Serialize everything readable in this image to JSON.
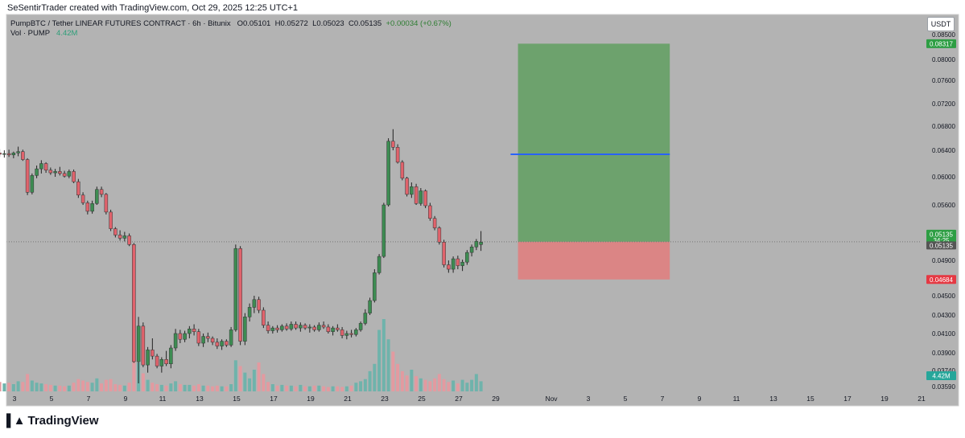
{
  "header": {
    "credit": "SeSentirTrader created with TradingView.com, Oct 29, 2025 12:25 UTC+1"
  },
  "legend": {
    "symbol_line": "PumpBTC / Tether LINEAR FUTURES CONTRACT · 6h · Bitunix",
    "o_label": "O",
    "o_value": "0.05101",
    "h_label": "H",
    "h_value": "0.05272",
    "l_label": "L",
    "l_value": "0.05023",
    "c_label": "C",
    "c_value": "0.05135",
    "change": "+0.00034 (+0.67%)",
    "vol_label": "Vol · PUMP",
    "vol_value": "4.42M"
  },
  "unit_button": "USDT",
  "footer": {
    "brand": "TradingView"
  },
  "colors": {
    "background": "#b3b3b3",
    "up": "#3d8c52",
    "down": "#e0636c",
    "profit_zone": "#6da26d",
    "loss_zone": "#db8585",
    "target_line": "#2962ff",
    "target_badge": "#2e9e44",
    "stop_badge": "#e53943",
    "price_badge": "#2e9e44",
    "vol_badge": "#26a69a"
  },
  "chart_data": {
    "type": "candlestick",
    "symbol": "PumpBTC / Tether LINEAR FUTURES CONTRACT",
    "interval": "6h",
    "exchange": "Bitunix",
    "y_ticks": [
      "0.08500",
      "0.08000",
      "0.07600",
      "0.07200",
      "0.06800",
      "0.06400",
      "0.06000",
      "0.05600",
      "0.04900",
      "0.04500",
      "0.04300",
      "0.04100",
      "0.03900",
      "0.03740",
      "0.03590"
    ],
    "y_ticks_values": [
      0.085,
      0.08,
      0.076,
      0.072,
      0.068,
      0.064,
      0.06,
      0.056,
      0.049,
      0.045,
      0.043,
      0.041,
      0.039,
      0.0374,
      0.0359
    ],
    "x_ticks": [
      "3",
      "5",
      "7",
      "9",
      "11",
      "13",
      "15",
      "17",
      "19",
      "21",
      "23",
      "25",
      "27",
      "29",
      "Nov",
      "3",
      "5",
      "7",
      "9",
      "11",
      "13",
      "15",
      "17",
      "19",
      "21"
    ],
    "x_ticks_days": [
      3,
      5,
      7,
      9,
      11,
      13,
      15,
      17,
      19,
      21,
      23,
      25,
      27,
      29,
      32,
      34,
      36,
      38,
      40,
      42,
      44,
      46,
      48,
      50,
      52
    ],
    "candles_day_start": 1.95,
    "candles_per_day": 4,
    "candles_ohlc": [
      [
        0.0648,
        0.065,
        0.0633,
        0.0636
      ],
      [
        0.0636,
        0.0642,
        0.063,
        0.0634
      ],
      [
        0.0634,
        0.064,
        0.0629,
        0.0635
      ],
      [
        0.0635,
        0.0641,
        0.063,
        0.0633
      ],
      [
        0.0633,
        0.0638,
        0.0628,
        0.0636
      ],
      [
        0.0636,
        0.0646,
        0.0631,
        0.0638
      ],
      [
        0.0638,
        0.0641,
        0.0624,
        0.0626
      ],
      [
        0.0626,
        0.0628,
        0.0574,
        0.0578
      ],
      [
        0.0578,
        0.0605,
        0.0575,
        0.0602
      ],
      [
        0.0602,
        0.0617,
        0.0598,
        0.0612
      ],
      [
        0.0612,
        0.0625,
        0.0605,
        0.062
      ],
      [
        0.062,
        0.0622,
        0.0606,
        0.061
      ],
      [
        0.061,
        0.0614,
        0.0603,
        0.0606
      ],
      [
        0.0606,
        0.0612,
        0.06,
        0.0608
      ],
      [
        0.0608,
        0.0615,
        0.0602,
        0.0605
      ],
      [
        0.0605,
        0.0609,
        0.0599,
        0.0601
      ],
      [
        0.0601,
        0.0611,
        0.0598,
        0.0608
      ],
      [
        0.0608,
        0.0611,
        0.0591,
        0.0593
      ],
      [
        0.0593,
        0.0597,
        0.057,
        0.0574
      ],
      [
        0.0574,
        0.0578,
        0.056,
        0.0563
      ],
      [
        0.0563,
        0.0566,
        0.0548,
        0.0552
      ],
      [
        0.0552,
        0.0566,
        0.0549,
        0.0562
      ],
      [
        0.0562,
        0.0586,
        0.056,
        0.0582
      ],
      [
        0.0582,
        0.0586,
        0.0571,
        0.0575
      ],
      [
        0.0575,
        0.0577,
        0.0548,
        0.0551
      ],
      [
        0.0551,
        0.0554,
        0.0527,
        0.053
      ],
      [
        0.053,
        0.0532,
        0.0519,
        0.0522
      ],
      [
        0.0522,
        0.0528,
        0.0515,
        0.0518
      ],
      [
        0.0518,
        0.0526,
        0.0514,
        0.0521
      ],
      [
        0.0521,
        0.0524,
        0.0508,
        0.051
      ],
      [
        0.051,
        0.0512,
        0.0381,
        0.0382
      ],
      [
        0.0382,
        0.0428,
        0.0362,
        0.0418
      ],
      [
        0.0418,
        0.0422,
        0.0377,
        0.0379
      ],
      [
        0.0379,
        0.0396,
        0.0372,
        0.0393
      ],
      [
        0.0393,
        0.0405,
        0.0384,
        0.0387
      ],
      [
        0.0387,
        0.0389,
        0.0376,
        0.0378
      ],
      [
        0.0378,
        0.0386,
        0.0372,
        0.0384
      ],
      [
        0.0384,
        0.0392,
        0.0378,
        0.038
      ],
      [
        0.038,
        0.0398,
        0.0376,
        0.0395
      ],
      [
        0.0395,
        0.0415,
        0.0392,
        0.041
      ],
      [
        0.041,
        0.0414,
        0.04,
        0.0404
      ],
      [
        0.0404,
        0.0413,
        0.0401,
        0.041
      ],
      [
        0.041,
        0.0418,
        0.0405,
        0.0415
      ],
      [
        0.0415,
        0.042,
        0.0408,
        0.0412
      ],
      [
        0.0412,
        0.0415,
        0.0397,
        0.04
      ],
      [
        0.04,
        0.041,
        0.0396,
        0.0407
      ],
      [
        0.0407,
        0.0411,
        0.0401,
        0.0405
      ],
      [
        0.0405,
        0.0407,
        0.0398,
        0.0401
      ],
      [
        0.0401,
        0.0405,
        0.0394,
        0.0397
      ],
      [
        0.0397,
        0.0404,
        0.0393,
        0.0402
      ],
      [
        0.0402,
        0.0404,
        0.0396,
        0.0398
      ],
      [
        0.0398,
        0.0417,
        0.0396,
        0.0414
      ],
      [
        0.0414,
        0.051,
        0.0412,
        0.0505
      ],
      [
        0.0505,
        0.0508,
        0.0398,
        0.0402
      ],
      [
        0.0402,
        0.0432,
        0.0398,
        0.0428
      ],
      [
        0.0428,
        0.0442,
        0.0423,
        0.0438
      ],
      [
        0.0438,
        0.045,
        0.0432,
        0.0446
      ],
      [
        0.0446,
        0.0449,
        0.0432,
        0.0435
      ],
      [
        0.0435,
        0.0438,
        0.0416,
        0.0419
      ],
      [
        0.0419,
        0.0423,
        0.041,
        0.0413
      ],
      [
        0.0413,
        0.0418,
        0.041,
        0.0416
      ],
      [
        0.0416,
        0.0419,
        0.0411,
        0.0414
      ],
      [
        0.0414,
        0.042,
        0.0412,
        0.0418
      ],
      [
        0.0418,
        0.0421,
        0.0413,
        0.0415
      ],
      [
        0.0415,
        0.0423,
        0.0413,
        0.042
      ],
      [
        0.042,
        0.0423,
        0.0414,
        0.0416
      ],
      [
        0.0416,
        0.0422,
        0.0412,
        0.0419
      ],
      [
        0.0419,
        0.0421,
        0.0414,
        0.0416
      ],
      [
        0.0416,
        0.042,
        0.0411,
        0.0417
      ],
      [
        0.0417,
        0.0419,
        0.0412,
        0.0414
      ],
      [
        0.0414,
        0.0422,
        0.0412,
        0.0419
      ],
      [
        0.0419,
        0.0423,
        0.0415,
        0.0417
      ],
      [
        0.0417,
        0.042,
        0.041,
        0.0412
      ],
      [
        0.0412,
        0.0418,
        0.0408,
        0.0416
      ],
      [
        0.0416,
        0.042,
        0.0412,
        0.0414
      ],
      [
        0.0414,
        0.0417,
        0.0405,
        0.0408
      ],
      [
        0.0408,
        0.0413,
        0.0404,
        0.041
      ],
      [
        0.041,
        0.0414,
        0.0406,
        0.0409
      ],
      [
        0.0409,
        0.0416,
        0.0407,
        0.0414
      ],
      [
        0.0414,
        0.0423,
        0.0412,
        0.0421
      ],
      [
        0.0421,
        0.0436,
        0.0419,
        0.0432
      ],
      [
        0.0432,
        0.0448,
        0.043,
        0.0445
      ],
      [
        0.0445,
        0.048,
        0.0443,
        0.0476
      ],
      [
        0.0476,
        0.0498,
        0.0474,
        0.0495
      ],
      [
        0.0495,
        0.0563,
        0.0493,
        0.056
      ],
      [
        0.056,
        0.066,
        0.0558,
        0.0655
      ],
      [
        0.0655,
        0.0675,
        0.064,
        0.0645
      ],
      [
        0.0645,
        0.065,
        0.062,
        0.0622
      ],
      [
        0.0622,
        0.0625,
        0.0595,
        0.0598
      ],
      [
        0.0598,
        0.06,
        0.0572,
        0.0575
      ],
      [
        0.0575,
        0.0592,
        0.057,
        0.0586
      ],
      [
        0.0586,
        0.059,
        0.056,
        0.0562
      ],
      [
        0.0562,
        0.0584,
        0.0559,
        0.058
      ],
      [
        0.058,
        0.0582,
        0.0556,
        0.0559
      ],
      [
        0.0559,
        0.0563,
        0.054,
        0.0543
      ],
      [
        0.0543,
        0.0546,
        0.0528,
        0.0531
      ],
      [
        0.0531,
        0.0533,
        0.051,
        0.0513
      ],
      [
        0.0513,
        0.0516,
        0.0482,
        0.0485
      ],
      [
        0.0485,
        0.049,
        0.0476,
        0.048
      ],
      [
        0.048,
        0.0495,
        0.0476,
        0.0492
      ],
      [
        0.0492,
        0.0496,
        0.048,
        0.0484
      ],
      [
        0.0484,
        0.0491,
        0.0478,
        0.0488
      ],
      [
        0.0488,
        0.0503,
        0.0485,
        0.05
      ],
      [
        0.05,
        0.051,
        0.0495,
        0.0507
      ],
      [
        0.0507,
        0.0517,
        0.0503,
        0.0514
      ],
      [
        0.051,
        0.0527,
        0.0502,
        0.0513
      ]
    ],
    "volume_relative": [
      0.22,
      0.13,
      0.11,
      0.12,
      0.1,
      0.14,
      0.13,
      0.24,
      0.15,
      0.12,
      0.11,
      0.1,
      0.09,
      0.08,
      0.08,
      0.07,
      0.08,
      0.12,
      0.17,
      0.15,
      0.13,
      0.12,
      0.18,
      0.11,
      0.16,
      0.17,
      0.1,
      0.09,
      0.08,
      0.12,
      0.55,
      0.4,
      0.25,
      0.16,
      0.12,
      0.1,
      0.09,
      0.08,
      0.11,
      0.14,
      0.1,
      0.09,
      0.09,
      0.08,
      0.1,
      0.08,
      0.08,
      0.07,
      0.08,
      0.07,
      0.07,
      0.1,
      0.43,
      0.35,
      0.26,
      0.18,
      0.3,
      0.4,
      0.24,
      0.13,
      0.1,
      0.08,
      0.09,
      0.08,
      0.08,
      0.07,
      0.09,
      0.07,
      0.07,
      0.08,
      0.08,
      0.07,
      0.06,
      0.07,
      0.07,
      0.06,
      0.07,
      0.08,
      0.12,
      0.14,
      0.17,
      0.28,
      0.38,
      0.85,
      1.0,
      0.72,
      0.55,
      0.38,
      0.28,
      0.22,
      0.3,
      0.21,
      0.18,
      0.16,
      0.14,
      0.18,
      0.24,
      0.17,
      0.13,
      0.15,
      0.11,
      0.16,
      0.12,
      0.16,
      0.24,
      0.14
    ],
    "current_price": "0.05135",
    "countdown": "34:25",
    "volume_label": "4.42M",
    "position": {
      "type": "long",
      "entry": 0.05135,
      "entry_label": "0.05135",
      "target": 0.08317,
      "target_label": "0.08317",
      "stop": 0.04684,
      "stop_label": "0.04684",
      "start_day": 30.2,
      "end_day": 38.4
    },
    "horizontal_line": {
      "price": 0.0634,
      "start_day": 29.8,
      "end_day": 38.4
    }
  }
}
